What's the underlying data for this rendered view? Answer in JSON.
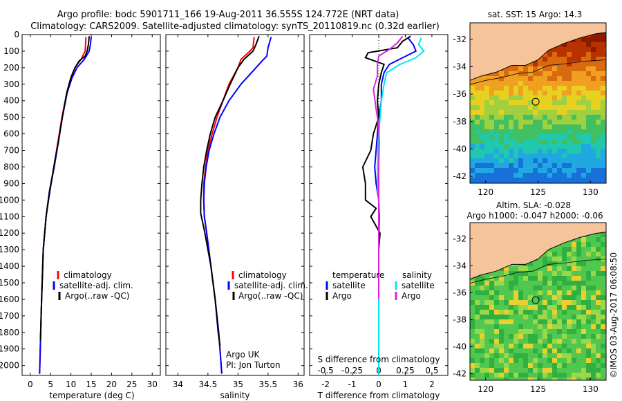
{
  "header": {
    "title_line1": "Argo profile: bodc 5901711_166 19-Aug-2011 36.555S 124.772E (NRT data)",
    "title_line2": "Climatology: CARS2009. Satellite-adjusted climatology: synTS_20110819.nc (0.32d earlier)"
  },
  "depth_axis": {
    "ticks": [
      0,
      100,
      200,
      300,
      400,
      500,
      600,
      700,
      800,
      900,
      1000,
      1100,
      1200,
      1300,
      1400,
      1500,
      1600,
      1700,
      1800,
      1900,
      2000
    ],
    "range": [
      0,
      2060
    ]
  },
  "colors": {
    "climatology": "#ff0000",
    "satellite": "#0000ff",
    "argo": "#000000",
    "cyan": "#00e5ee",
    "magenta": "#e020e0",
    "land": "#f6c49a"
  },
  "chart_data": [
    {
      "type": "line",
      "panel": "temperature",
      "xlabel": "temperature (deg C)",
      "xticks": [
        0,
        5,
        10,
        15,
        20,
        25,
        30
      ],
      "xlim": [
        -2,
        32
      ],
      "legend": [
        "climatology",
        "satellite-adj. clim.",
        "Argo(..raw -QC)"
      ],
      "series": [
        {
          "name": "climatology",
          "color": "#ff0000",
          "depth": [
            15,
            60,
            100,
            150,
            200,
            260,
            350,
            500,
            650,
            800,
            950,
            1100,
            1300,
            1600,
            2050
          ],
          "values": [
            13.7,
            13.6,
            13.5,
            12.5,
            11.0,
            10.0,
            9.0,
            7.8,
            6.8,
            5.8,
            4.7,
            3.9,
            3.2,
            2.8,
            2.3
          ]
        },
        {
          "name": "satellite-adj. clim.",
          "color": "#0000ff",
          "depth": [
            15,
            60,
            100,
            150,
            200,
            260,
            350,
            500,
            650,
            800,
            950,
            1100,
            1300,
            1600,
            2050
          ],
          "values": [
            15.0,
            14.8,
            14.5,
            13.3,
            11.5,
            10.3,
            9.1,
            7.9,
            6.9,
            5.9,
            4.7,
            3.9,
            3.2,
            2.8,
            2.3
          ]
        },
        {
          "name": "Argo(..raw -QC)",
          "color": "#000000",
          "depth": [
            10,
            60,
            100,
            130,
            160,
            200,
            260,
            350,
            500,
            650,
            800,
            950,
            1100,
            1300,
            1600,
            1850
          ],
          "values": [
            14.5,
            14.3,
            14.0,
            13.5,
            12.0,
            11.0,
            10.0,
            9.0,
            7.9,
            6.9,
            5.8,
            4.8,
            3.9,
            3.2,
            2.8,
            2.5
          ]
        }
      ]
    },
    {
      "type": "line",
      "panel": "salinity",
      "xlabel": "salinity",
      "xticks": [
        "34",
        "34.5",
        "35",
        "35.5",
        "36"
      ],
      "xtick_values": [
        34,
        34.5,
        35,
        35.5,
        36
      ],
      "xlim": [
        33.8,
        36.1
      ],
      "legend": [
        "climatology",
        "satellite-adj. clim.",
        "Argo(..raw -QC)"
      ],
      "annotation_lines": [
        "Argo UK",
        "PI: Jon Turton"
      ],
      "series": [
        {
          "name": "climatology",
          "color": "#ff0000",
          "depth": [
            15,
            80,
            100,
            150,
            200,
            300,
            400,
            500,
            600,
            700,
            800,
            900,
            1000,
            1100,
            1200,
            1400,
            1600,
            1800,
            2050
          ],
          "values": [
            35.27,
            35.25,
            35.2,
            35.05,
            35.0,
            34.85,
            34.75,
            34.65,
            34.57,
            34.5,
            34.46,
            34.43,
            34.43,
            34.44,
            34.48,
            34.55,
            34.62,
            34.68,
            34.73
          ]
        },
        {
          "name": "satellite-adj. clim.",
          "color": "#0000ff",
          "depth": [
            15,
            80,
            130,
            160,
            200,
            300,
            400,
            500,
            600,
            700,
            800,
            900,
            1000,
            1100,
            1200,
            1400,
            1600,
            1800,
            2050
          ],
          "values": [
            35.55,
            35.5,
            35.48,
            35.4,
            35.3,
            35.05,
            34.85,
            34.7,
            34.6,
            34.52,
            34.47,
            34.44,
            34.43,
            34.44,
            34.48,
            34.55,
            34.62,
            34.68,
            34.73
          ]
        },
        {
          "name": "Argo(..raw -QC)",
          "color": "#000000",
          "depth": [
            10,
            60,
            100,
            150,
            200,
            300,
            400,
            500,
            600,
            700,
            800,
            900,
            1000,
            1080,
            1200,
            1400,
            1600,
            1800,
            1880
          ],
          "values": [
            35.35,
            35.3,
            35.25,
            35.1,
            35.0,
            34.87,
            34.75,
            34.62,
            34.54,
            34.48,
            34.43,
            34.4,
            34.38,
            34.38,
            34.45,
            34.55,
            34.62,
            34.67,
            34.7
          ]
        }
      ]
    },
    {
      "type": "line",
      "panel": "difference",
      "xlabel": "T difference from climatology",
      "top_label": "S difference from climatology",
      "xticks": [
        -2,
        -1,
        0,
        1,
        2
      ],
      "top_ticks": [
        "-0.5",
        "-0.25",
        "0",
        "0.25",
        "0.5"
      ],
      "xlim": [
        -2.6,
        2.6
      ],
      "legend_headers": [
        "temperature",
        "salinity"
      ],
      "legend": [
        "satellite",
        "Argo",
        "satellite",
        "Argo"
      ],
      "series": [
        {
          "name": "satellite",
          "color": "#0000ff",
          "depth": [
            20,
            60,
            100,
            140,
            180,
            230,
            300,
            400,
            500,
            600,
            700,
            800,
            900,
            1000,
            1100,
            1300,
            2060
          ],
          "values": [
            1.1,
            1.3,
            1.4,
            0.9,
            0.4,
            0.2,
            0.1,
            0.1,
            0.0,
            -0.05,
            -0.1,
            -0.15,
            -0.1,
            0.0,
            0.02,
            0.0,
            0.0
          ]
        },
        {
          "name": "Argo",
          "color": "#000000",
          "depth": [
            10,
            40,
            80,
            110,
            140,
            180,
            230,
            300,
            400,
            500,
            600,
            700,
            800,
            900,
            1000,
            1050,
            1100,
            1200,
            1300,
            1600,
            1850
          ],
          "values": [
            1.2,
            0.9,
            0.7,
            -0.4,
            -0.5,
            0.2,
            0.1,
            0.0,
            -0.05,
            0.0,
            -0.2,
            -0.3,
            -0.6,
            -0.5,
            -0.5,
            -0.1,
            -0.3,
            0.05,
            0.0,
            0.0,
            0.0
          ]
        },
        {
          "name": "satellite",
          "color": "#00e5ee",
          "depth": [
            20,
            60,
            100,
            140,
            180,
            230,
            300,
            400,
            500,
            600,
            700,
            800,
            900,
            1000,
            1100,
            1300,
            2060
          ],
          "values": [
            1.6,
            1.5,
            1.7,
            1.4,
            0.8,
            0.3,
            0.2,
            0.1,
            0.05,
            0.0,
            -0.03,
            -0.05,
            -0.05,
            0.0,
            0.0,
            0.0,
            0.0
          ]
        },
        {
          "name": "Argo",
          "color": "#e020e0",
          "depth": [
            10,
            50,
            90,
            130,
            180,
            250,
            330,
            450,
            550,
            650,
            800,
            1000,
            1200,
            1600
          ],
          "values": [
            0.9,
            0.7,
            0.4,
            0.0,
            -0.05,
            -0.05,
            -0.2,
            -0.1,
            0.0,
            0.02,
            0.0,
            0.0,
            0.0,
            0.0
          ]
        }
      ]
    },
    {
      "type": "heatmap",
      "panel": "sst_map",
      "title": "sat. SST: 15 Argo: 14.3",
      "xticks": [
        "120",
        "125",
        "130"
      ],
      "yticks": [
        "-32",
        "-34",
        "-36",
        "-38",
        "-40",
        "-42"
      ],
      "xlim": [
        118.5,
        131.5
      ],
      "ylim": [
        -42.5,
        -30.8
      ],
      "profile_marker": [
        124.772,
        -36.555
      ]
    },
    {
      "type": "heatmap",
      "panel": "sla_map",
      "title_line1": "Altim. SLA: -0.028",
      "title_line2": "Argo h1000: -0.047 h2000: -0.06",
      "xticks": [
        "120",
        "125",
        "130"
      ],
      "yticks": [
        "-32",
        "-34",
        "-36",
        "-38",
        "-40",
        "-42"
      ],
      "xlim": [
        118.5,
        131.5
      ],
      "ylim": [
        -42.5,
        -30.8
      ],
      "profile_marker": [
        124.772,
        -36.555
      ]
    }
  ],
  "footer": {
    "stamp": "©IMOS 03-Aug-2017 06:08:50"
  }
}
